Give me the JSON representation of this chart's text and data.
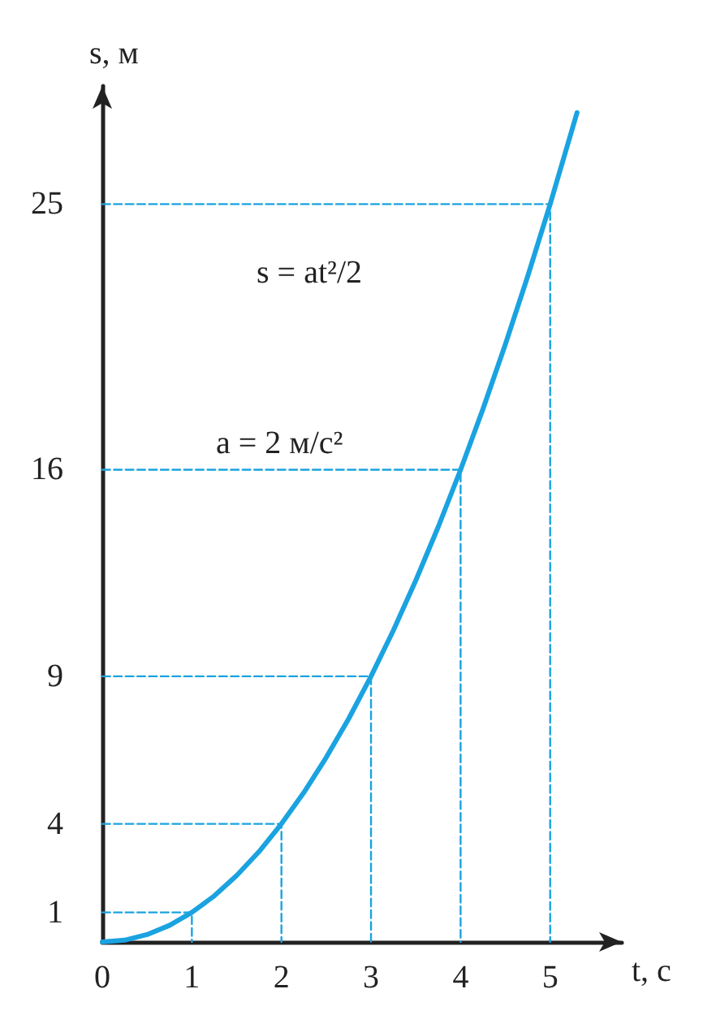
{
  "chart_data": {
    "type": "line",
    "xlabel": "t, с",
    "ylabel": "s, м",
    "annotations": [
      "s = at²/2",
      "a = 2 м/с²"
    ],
    "series": [
      {
        "color": "#1aa3e0",
        "marker": "none",
        "x": [
          0,
          0.25,
          0.5,
          0.75,
          1,
          1.25,
          1.5,
          1.75,
          2,
          2.25,
          2.5,
          2.75,
          3,
          3.25,
          3.5,
          3.75,
          4,
          4.25,
          4.5,
          4.75,
          5,
          5.3
        ],
        "values": [
          0,
          0.06,
          0.25,
          0.56,
          1,
          1.56,
          2.25,
          3.06,
          4,
          5.06,
          6.25,
          7.56,
          9,
          10.56,
          12.25,
          14.06,
          16,
          18.06,
          20.25,
          22.56,
          25,
          28.1
        ]
      },
      {
        "color": "#1aa3e0",
        "marker": "none",
        "line_style": "dashed",
        "x": [
          0,
          1,
          1
        ],
        "values": [
          1,
          1,
          0
        ]
      },
      {
        "color": "#1aa3e0",
        "marker": "none",
        "line_style": "dashed",
        "x": [
          0,
          2,
          2
        ],
        "values": [
          4,
          4,
          0
        ]
      },
      {
        "color": "#1aa3e0",
        "marker": "none",
        "line_style": "dashed",
        "x": [
          0,
          3,
          3
        ],
        "values": [
          9,
          9,
          0
        ]
      },
      {
        "color": "#1aa3e0",
        "marker": "none",
        "line_style": "dashed",
        "x": [
          0,
          4,
          4
        ],
        "values": [
          16,
          16,
          0
        ]
      },
      {
        "color": "#1aa3e0",
        "marker": "none",
        "line_style": "dashed",
        "x": [
          0,
          5,
          5
        ],
        "values": [
          25,
          25,
          0
        ]
      }
    ],
    "xlim": [
      0,
      5.8
    ],
    "ylim": [
      0,
      29
    ],
    "xticks": [
      0,
      1,
      2,
      3,
      4,
      5
    ],
    "yticks": [
      1,
      4,
      9,
      16,
      25
    ],
    "grid": false
  }
}
